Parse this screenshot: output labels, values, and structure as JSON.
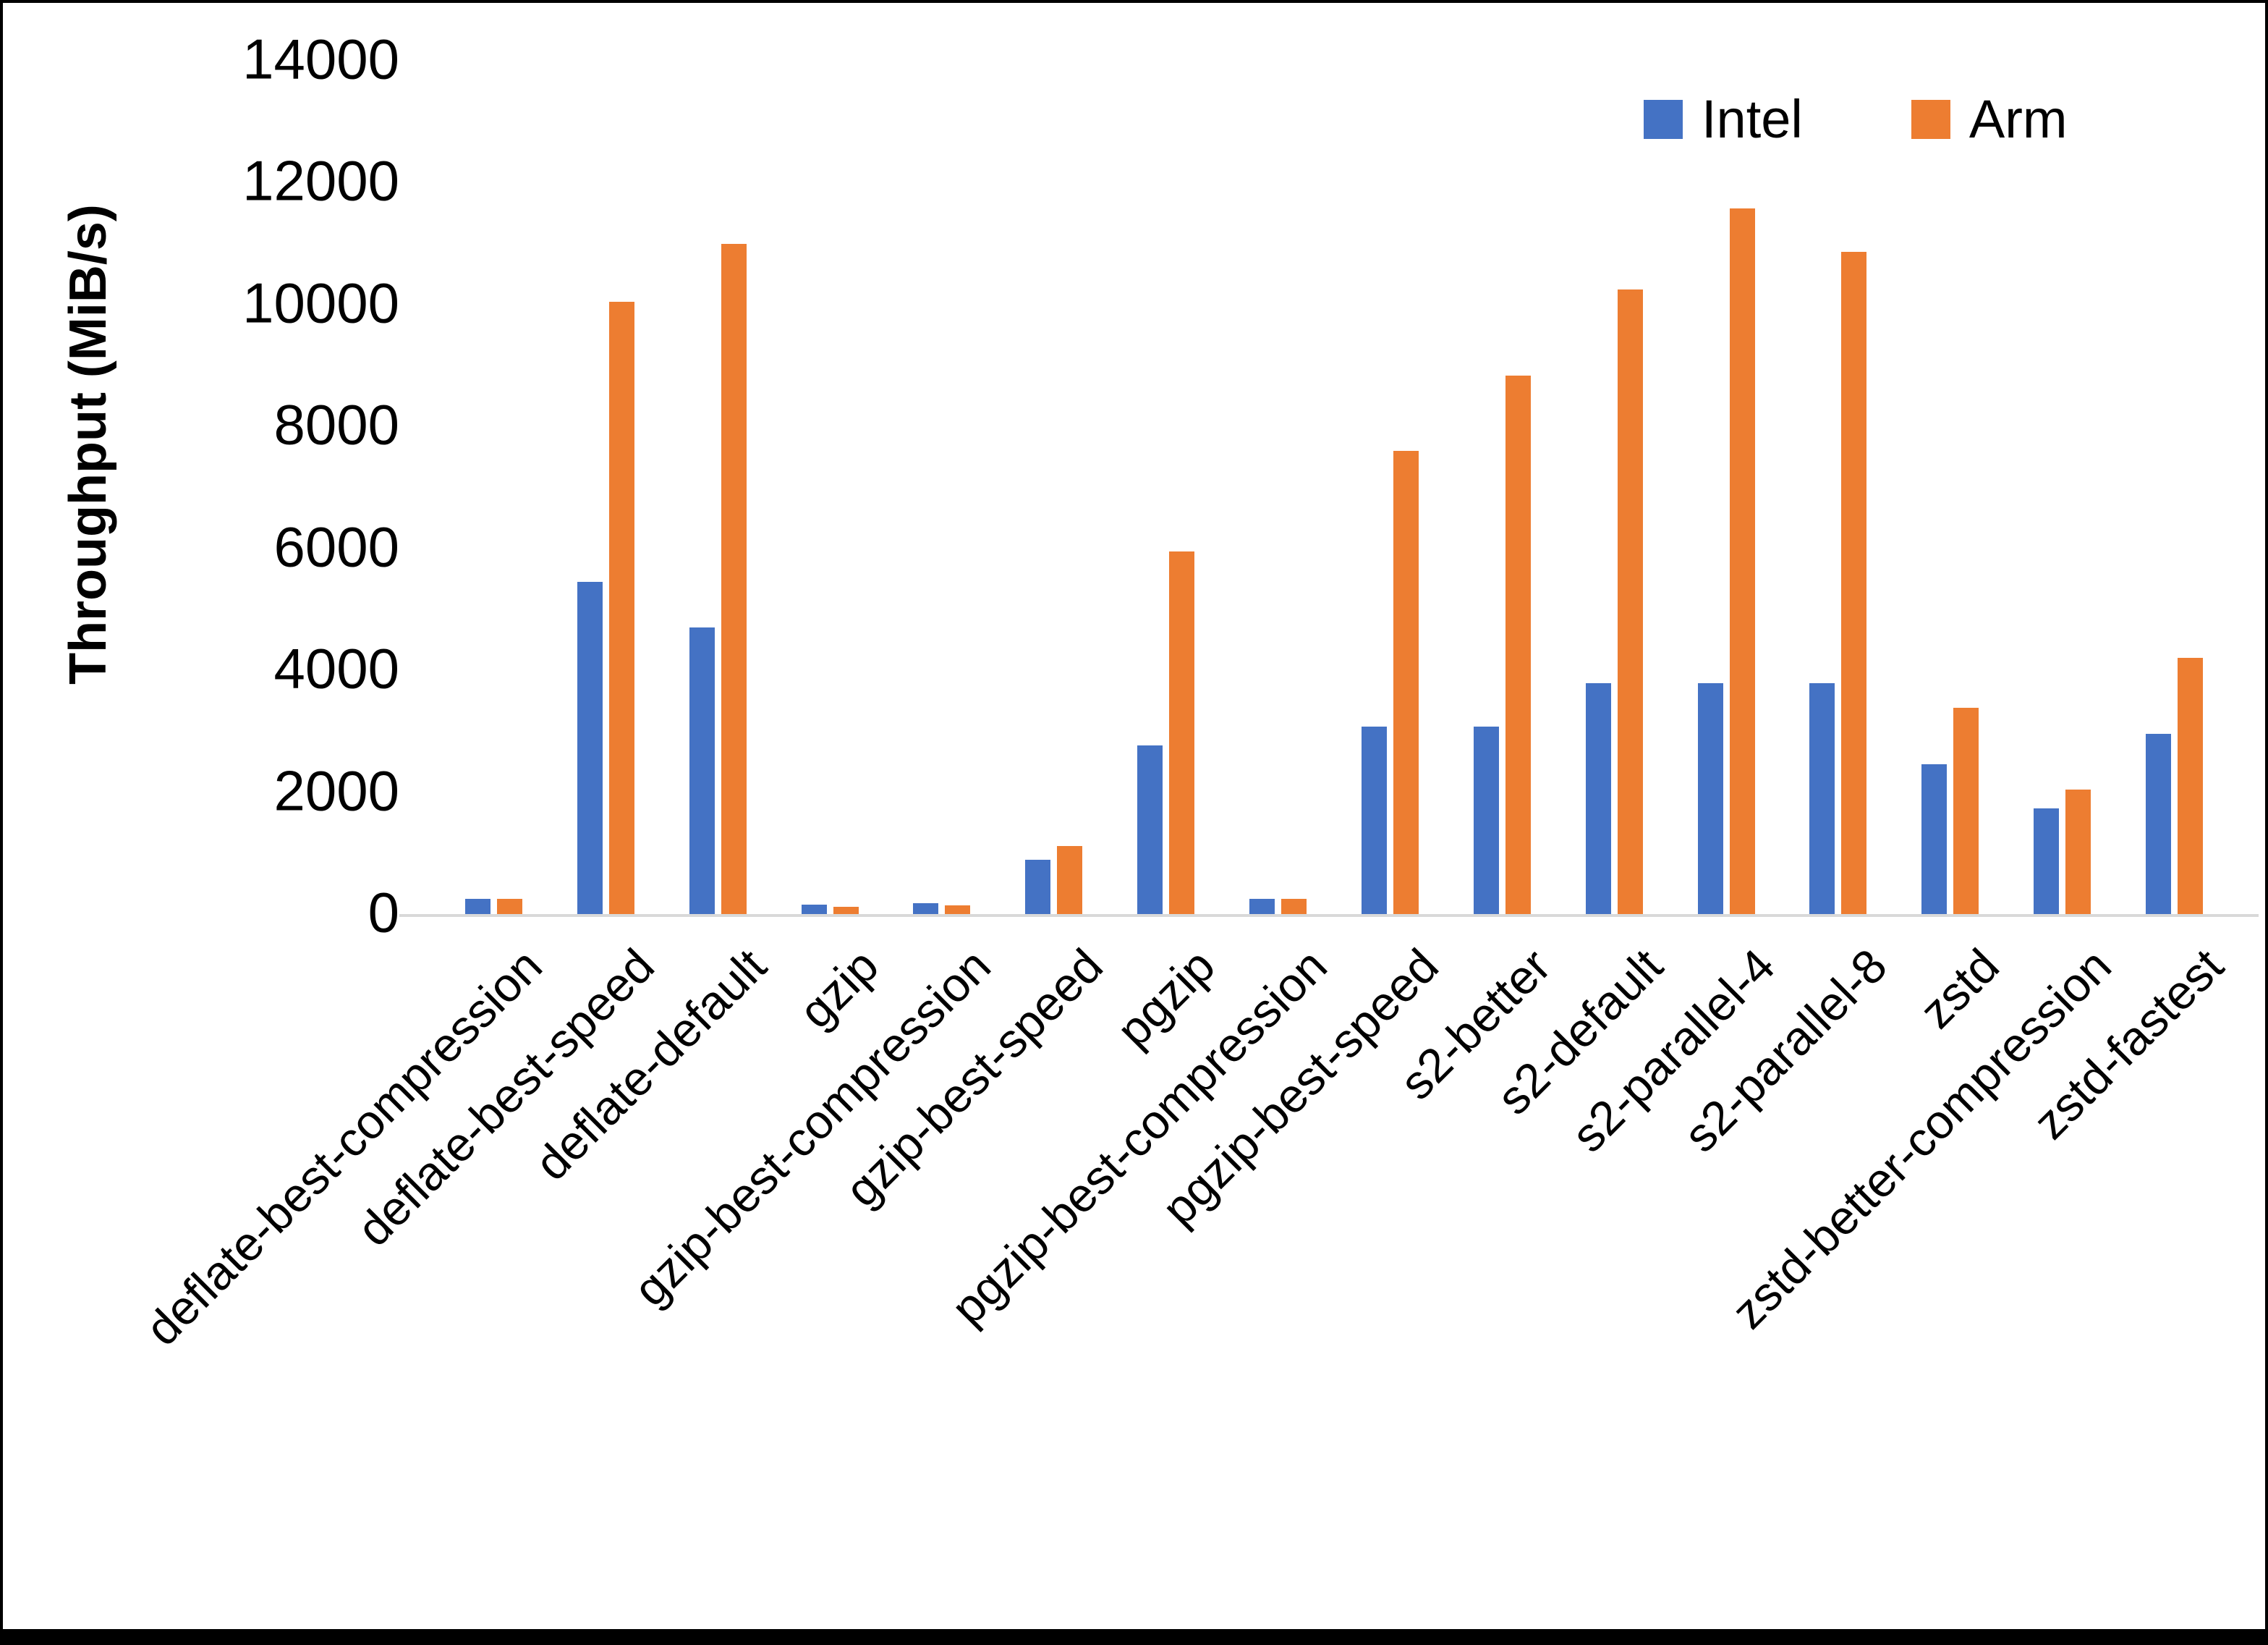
{
  "chart_data": {
    "type": "bar",
    "title": "",
    "xlabel": "",
    "ylabel": "Throughput (MiB/s)",
    "ylim": [
      0,
      14000
    ],
    "y_ticks": [
      0,
      2000,
      4000,
      6000,
      8000,
      10000,
      12000,
      14000
    ],
    "grid": false,
    "legend_position": "top-right",
    "categories": [
      "deflate-best-compression",
      "deflate-best-speed",
      "deflate-default",
      "gzip",
      "gzip-best-compression",
      "gzip-best-speed",
      "pgzip",
      "pgzip-best-compression",
      "pgzip-best-speed",
      "s2-better",
      "s2-default",
      "s2-parallel-4",
      "s2-parallel-8",
      "zstd",
      "zstd-better-compression",
      "zstd-fastest"
    ],
    "series": [
      {
        "name": "Intel",
        "color": "#4472C4",
        "values": [
          250,
          5450,
          4700,
          150,
          175,
          890,
          2770,
          250,
          3080,
          3080,
          3790,
          3790,
          3790,
          2460,
          1730,
          2960
        ]
      },
      {
        "name": "Arm",
        "color": "#ED7D31",
        "values": [
          250,
          10050,
          11000,
          120,
          140,
          1120,
          5950,
          250,
          7600,
          8830,
          10250,
          11580,
          10860,
          3380,
          2040,
          4200
        ]
      }
    ]
  },
  "colors": {
    "axis_line": "#D9D9D9",
    "text": "#000000",
    "background": "#FFFFFF",
    "frame_border": "#000000"
  }
}
